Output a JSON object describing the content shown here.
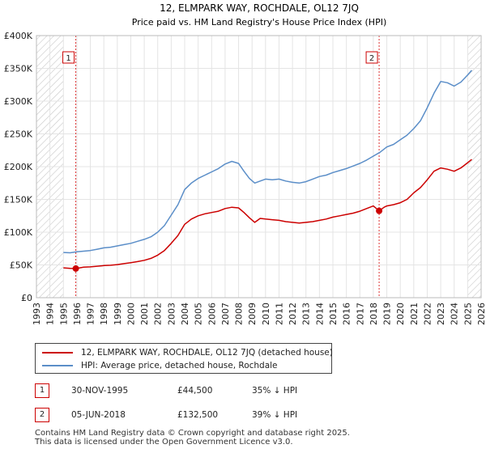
{
  "chart_data": {
    "type": "line",
    "title": "12, ELMPARK WAY, ROCHDALE, OL12 7JQ",
    "subtitle": "Price paid vs. HM Land Registry's House Price Index (HPI)",
    "xlim": [
      1993,
      2026
    ],
    "ylim": [
      0,
      400000
    ],
    "x_ticks": [
      "1993",
      "1994",
      "1995",
      "1996",
      "1997",
      "1998",
      "1999",
      "2000",
      "2001",
      "2002",
      "2003",
      "2004",
      "2005",
      "2006",
      "2007",
      "2008",
      "2009",
      "2010",
      "2011",
      "2012",
      "2013",
      "2014",
      "2015",
      "2016",
      "2017",
      "2018",
      "2019",
      "2020",
      "2021",
      "2022",
      "2023",
      "2024",
      "2025",
      "2026"
    ],
    "y_ticks": [
      {
        "value": 0,
        "label": "£0"
      },
      {
        "value": 50000,
        "label": "£50K"
      },
      {
        "value": 100000,
        "label": "£100K"
      },
      {
        "value": 150000,
        "label": "£150K"
      },
      {
        "value": 200000,
        "label": "£200K"
      },
      {
        "value": 250000,
        "label": "£250K"
      },
      {
        "value": 300000,
        "label": "£300K"
      },
      {
        "value": 350000,
        "label": "£350K"
      },
      {
        "value": 400000,
        "label": "£400K"
      }
    ],
    "hatch_before": 1995.0,
    "hatch_after": 2025.0,
    "series": [
      {
        "name": "12, ELMPARK WAY, ROCHDALE, OL12 7JQ (detached house)",
        "color": "#cc0000",
        "x": [
          1995.0,
          1995.5,
          1995.92,
          1996.5,
          1997,
          1997.5,
          1998,
          1998.5,
          1999,
          1999.5,
          2000,
          2000.5,
          2001,
          2001.5,
          2002,
          2002.5,
          2003,
          2003.5,
          2004,
          2004.5,
          2005,
          2005.5,
          2006,
          2006.5,
          2007,
          2007.5,
          2008,
          2008.4,
          2008.8,
          2009.2,
          2009.6,
          2010,
          2010.5,
          2011,
          2011.5,
          2012,
          2012.5,
          2013,
          2013.5,
          2014,
          2014.5,
          2015,
          2015.5,
          2016,
          2016.5,
          2017,
          2017.5,
          2018.0,
          2018.43,
          2018.8,
          2019,
          2019.5,
          2020,
          2020.5,
          2021,
          2021.5,
          2022,
          2022.5,
          2023,
          2023.5,
          2024,
          2024.5,
          2025,
          2025.3
        ],
        "y": [
          45500,
          44800,
          44500,
          46500,
          47000,
          48000,
          49000,
          49500,
          50500,
          52000,
          53500,
          55000,
          57000,
          60000,
          65000,
          72000,
          83000,
          95000,
          112000,
          120000,
          125000,
          128000,
          130000,
          132000,
          136000,
          138000,
          137000,
          130000,
          122000,
          115000,
          121000,
          120000,
          119000,
          118000,
          116000,
          115000,
          114000,
          115000,
          116000,
          118000,
          120000,
          123000,
          125000,
          127000,
          129000,
          132000,
          136000,
          140000,
          132500,
          138000,
          140000,
          142000,
          145000,
          150000,
          160000,
          168000,
          180000,
          193000,
          198000,
          196000,
          193000,
          198000,
          206000,
          211000
        ]
      },
      {
        "name": "HPI: Average price, detached house, Rochdale",
        "color": "#5b8ec8",
        "x": [
          1995.0,
          1995.5,
          1996,
          1996.5,
          1997,
          1997.5,
          1998,
          1998.5,
          1999,
          1999.5,
          2000,
          2000.5,
          2001,
          2001.5,
          2002,
          2002.5,
          2003,
          2003.5,
          2004,
          2004.5,
          2005,
          2005.5,
          2006,
          2006.5,
          2007,
          2007.5,
          2008,
          2008.4,
          2008.8,
          2009.2,
          2009.6,
          2010,
          2010.5,
          2011,
          2011.5,
          2012,
          2012.5,
          2013,
          2013.5,
          2014,
          2014.5,
          2015,
          2015.5,
          2016,
          2016.5,
          2017,
          2017.5,
          2018,
          2018.5,
          2019,
          2019.5,
          2020,
          2020.5,
          2021,
          2021.5,
          2022,
          2022.5,
          2023,
          2023.5,
          2024,
          2024.5,
          2025,
          2025.3
        ],
        "y": [
          69000,
          68500,
          70000,
          71000,
          72000,
          74000,
          76000,
          77000,
          79000,
          81000,
          83000,
          86000,
          89000,
          93000,
          100000,
          110000,
          126000,
          142000,
          165000,
          175000,
          182000,
          187000,
          192000,
          197000,
          204000,
          208000,
          205000,
          193000,
          182000,
          175000,
          178000,
          181000,
          180000,
          181000,
          178000,
          176000,
          175000,
          177000,
          181000,
          185000,
          187000,
          191000,
          194000,
          197000,
          201000,
          205000,
          210000,
          216000,
          222000,
          230000,
          234000,
          241000,
          248000,
          258000,
          270000,
          290000,
          312000,
          330000,
          328000,
          323000,
          329000,
          340000,
          347000
        ]
      }
    ],
    "sales": [
      {
        "label": "1",
        "x": 1995.92,
        "y": 44500
      },
      {
        "label": "2",
        "x": 2018.43,
        "y": 132500
      }
    ]
  },
  "legend": {
    "property_label": "12, ELMPARK WAY, ROCHDALE, OL12 7JQ (detached house)",
    "hpi_label": "HPI: Average price, detached house, Rochdale",
    "property_color": "#cc0000",
    "hpi_color": "#5b8ec8"
  },
  "transactions": [
    {
      "num": "1",
      "date": "30-NOV-1995",
      "price": "£44,500",
      "hpi": "35% ↓ HPI"
    },
    {
      "num": "2",
      "date": "05-JUN-2018",
      "price": "£132,500",
      "hpi": "39% ↓ HPI"
    }
  ],
  "footer": {
    "line1": "Contains HM Land Registry data © Crown copyright and database right 2025.",
    "line2": "This data is licensed under the Open Government Licence v3.0."
  }
}
